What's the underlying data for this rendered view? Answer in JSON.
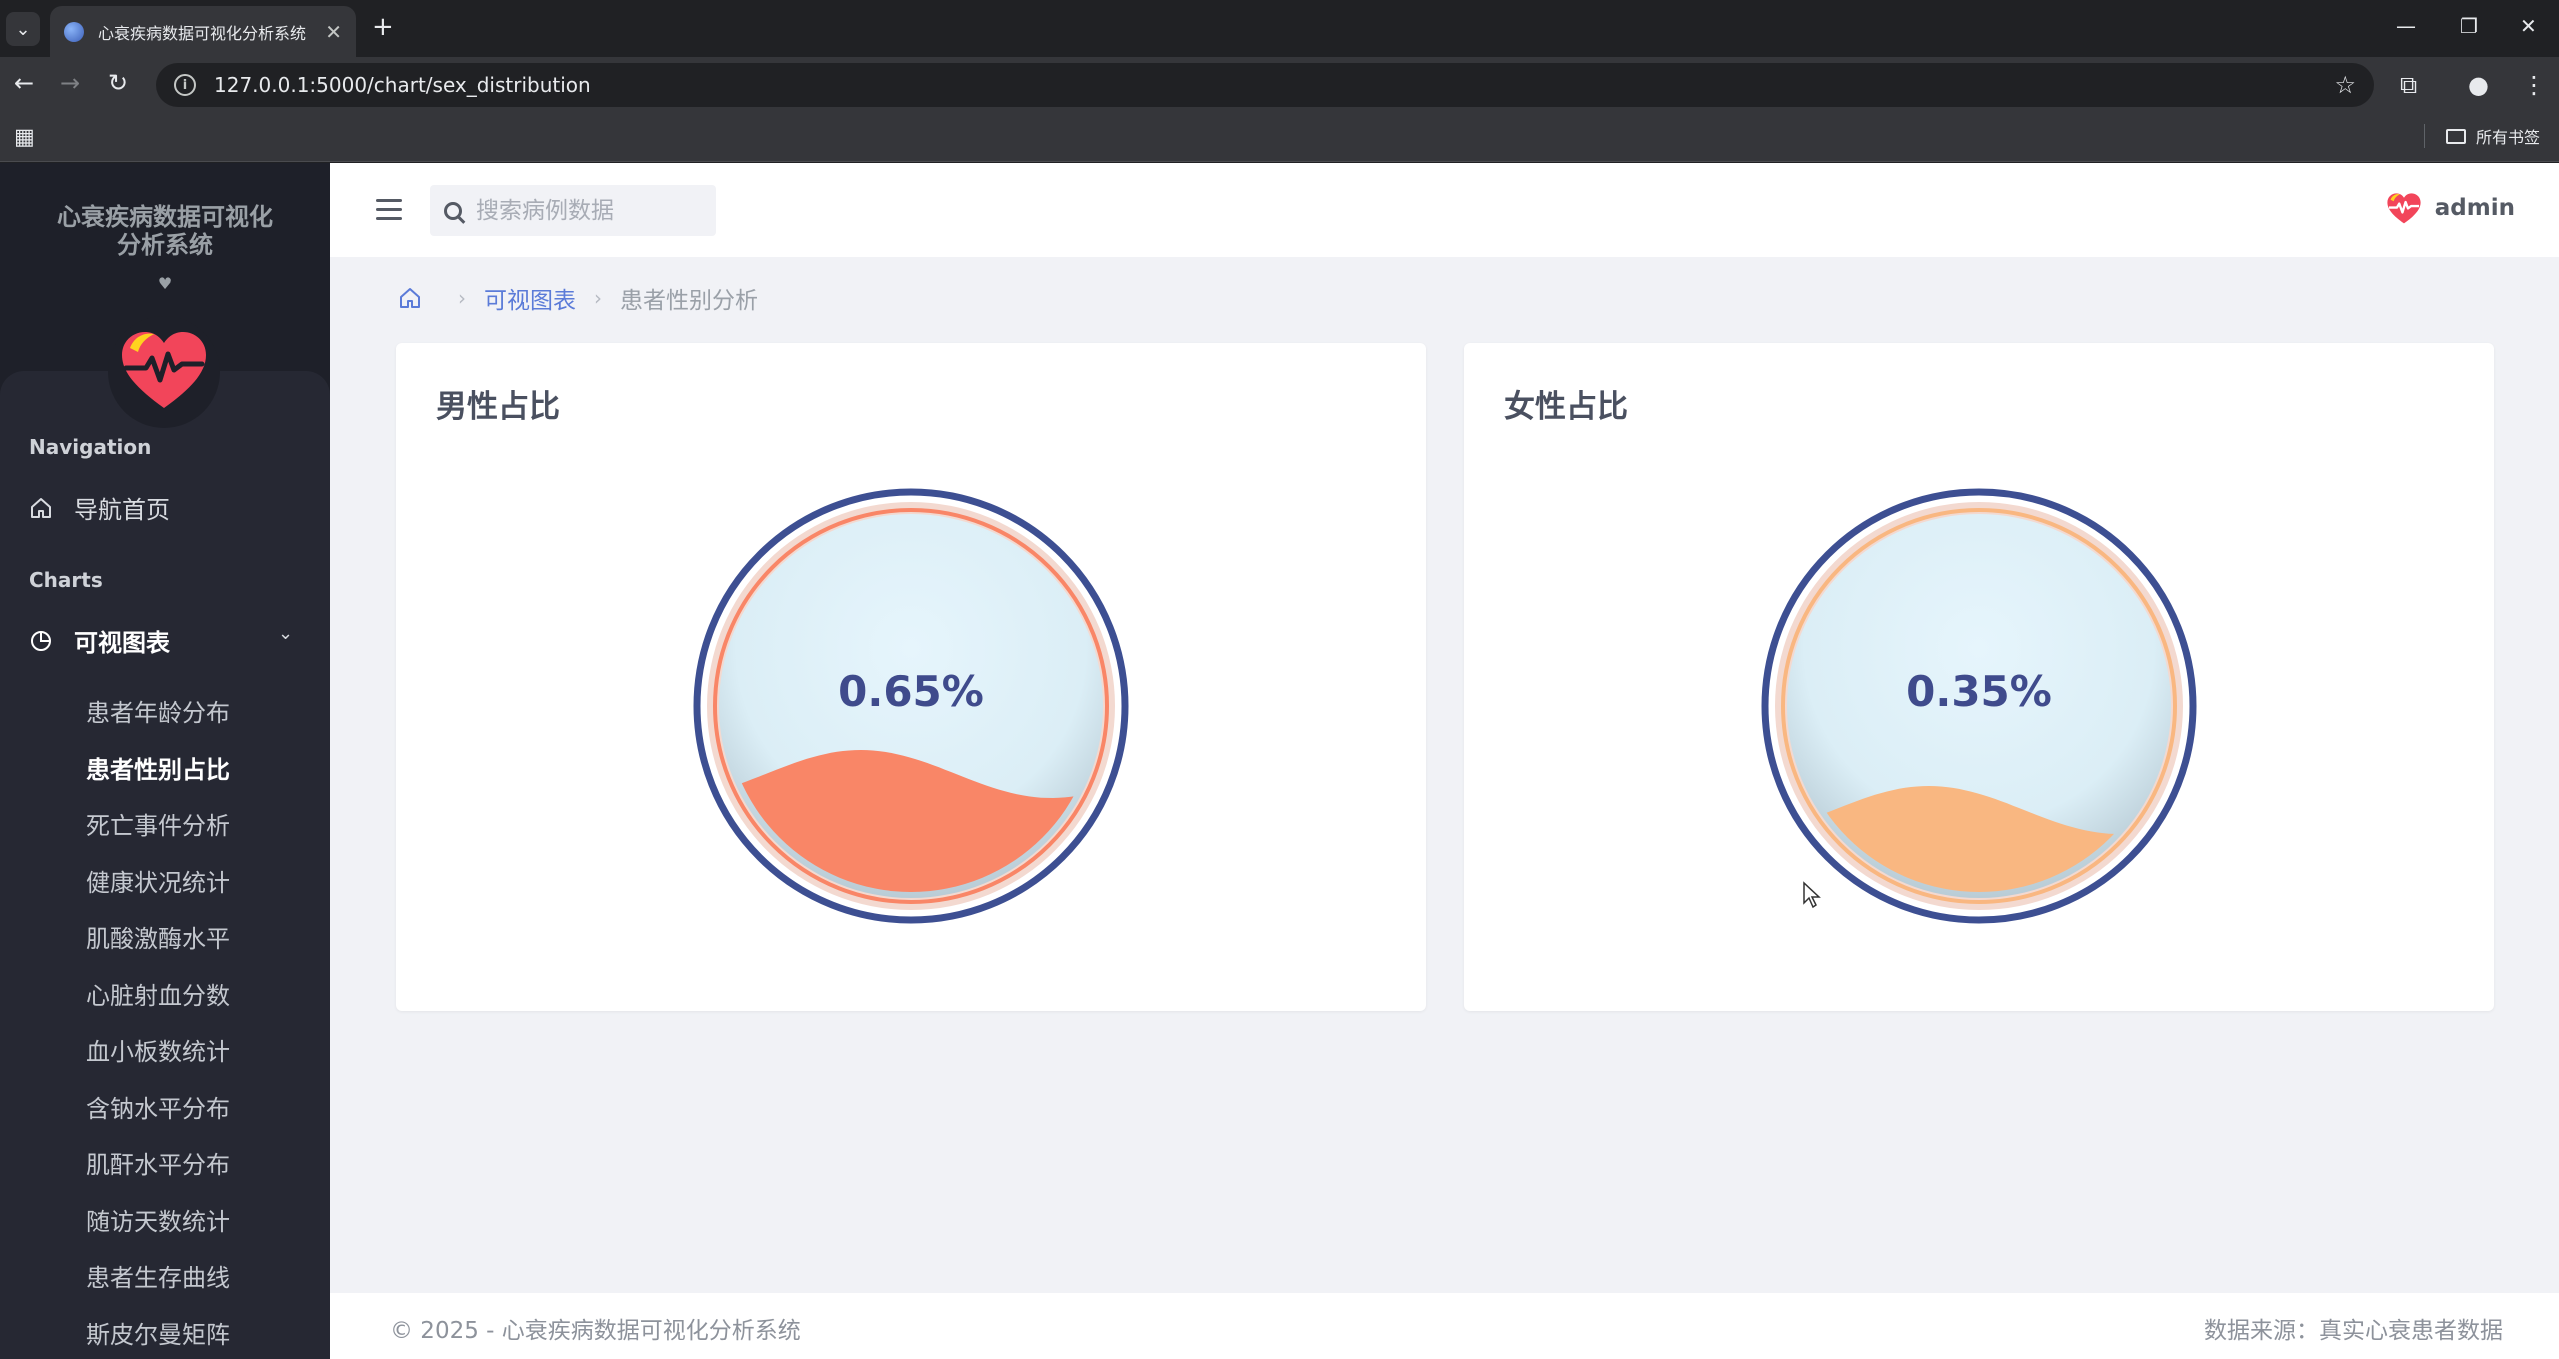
{
  "browser": {
    "tab_title": "心衰疾病数据可视化分析系统",
    "url": "127.0.0.1:5000/chart/sex_distribution",
    "bookmarks_folder": "所有书签"
  },
  "sidebar": {
    "brand_title": "心衰疾病数据可视化分析系统",
    "brand_heart": "♥",
    "section_navigation": "Navigation",
    "home_label": "导航首页",
    "section_charts": "Charts",
    "charts_label": "可视图表",
    "sub_items": [
      "患者年龄分布",
      "患者性别占比",
      "死亡事件分析",
      "健康状况统计",
      "肌酸激酶水平",
      "心脏射血分数",
      "血小板数统计",
      "含钠水平分布",
      "肌酐水平分布",
      "随访天数统计",
      "患者生存曲线",
      "斯皮尔曼矩阵"
    ],
    "active_index": 1
  },
  "topbar": {
    "search_placeholder": "搜索病例数据",
    "user_name": "admin"
  },
  "breadcrumb": {
    "parent": "可视图表",
    "current": "患者性别分析"
  },
  "cards": [
    {
      "title": "男性占比",
      "value_label": "0.65%",
      "value": 0.65,
      "wave_color": "#f98667",
      "ring_color": "#f98667"
    },
    {
      "title": "女性占比",
      "value_label": "0.35%",
      "value": 0.35,
      "wave_color": "#f9b781",
      "ring_color": "#f9b781"
    }
  ],
  "colors": {
    "gauge_outline": "#3d4f92",
    "gauge_fill": "#e2f3fb",
    "accent_link": "#5b7bd8"
  },
  "footer": {
    "copyright": "© 2025 - 心衰疾病数据可视化分析系统",
    "source": "数据来源：真实心衰患者数据"
  }
}
